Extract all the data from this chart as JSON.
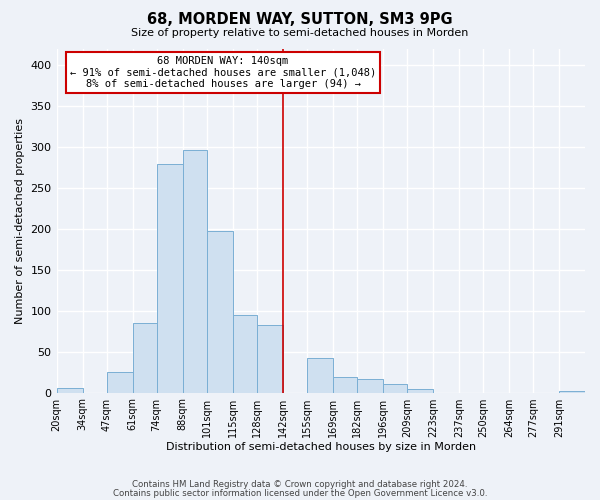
{
  "title": "68, MORDEN WAY, SUTTON, SM3 9PG",
  "subtitle": "Size of property relative to semi-detached houses in Morden",
  "xlabel": "Distribution of semi-detached houses by size in Morden",
  "ylabel": "Number of semi-detached properties",
  "bar_color": "#cfe0f0",
  "bar_edge_color": "#7aafd4",
  "background_color": "#eef2f8",
  "plot_bg_color": "#eef2f8",
  "grid_color": "#ffffff",
  "bin_labels": [
    "20sqm",
    "34sqm",
    "47sqm",
    "61sqm",
    "74sqm",
    "88sqm",
    "101sqm",
    "115sqm",
    "128sqm",
    "142sqm",
    "155sqm",
    "169sqm",
    "182sqm",
    "196sqm",
    "209sqm",
    "223sqm",
    "237sqm",
    "250sqm",
    "264sqm",
    "277sqm",
    "291sqm"
  ],
  "bin_values": [
    5,
    0,
    25,
    85,
    280,
    297,
    198,
    95,
    83,
    0,
    42,
    19,
    16,
    10,
    4,
    0,
    0,
    0,
    0,
    0,
    2
  ],
  "bin_edges": [
    20,
    34,
    47,
    61,
    74,
    88,
    101,
    115,
    128,
    142,
    155,
    169,
    182,
    196,
    209,
    223,
    237,
    250,
    264,
    277,
    291,
    305
  ],
  "vline_x": 142,
  "ylim": [
    0,
    420
  ],
  "yticks": [
    0,
    50,
    100,
    150,
    200,
    250,
    300,
    350,
    400
  ],
  "annotation_title": "68 MORDEN WAY: 140sqm",
  "annotation_line1": "← 91% of semi-detached houses are smaller (1,048)",
  "annotation_line2": "8% of semi-detached houses are larger (94) →",
  "annotation_box_color": "#ffffff",
  "annotation_box_edge": "#cc0000",
  "vline_color": "#cc0000",
  "footer1": "Contains HM Land Registry data © Crown copyright and database right 2024.",
  "footer2": "Contains public sector information licensed under the Open Government Licence v3.0."
}
